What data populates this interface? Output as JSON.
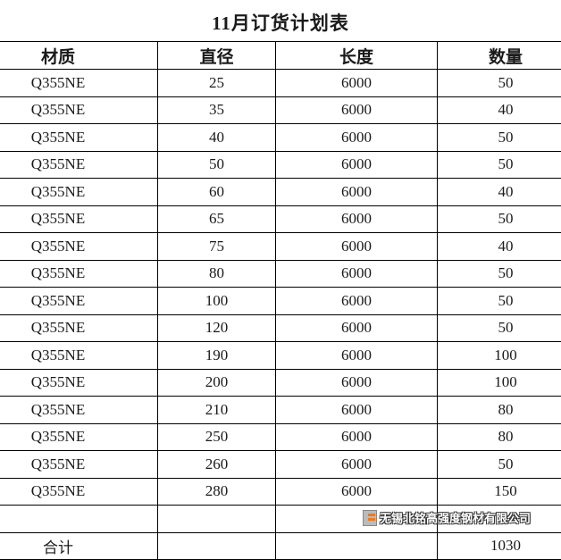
{
  "title": "11月订货计划表",
  "headers": [
    "材质",
    "直径",
    "长度",
    "数量"
  ],
  "rows": [
    [
      "Q355NE",
      "25",
      "6000",
      "50"
    ],
    [
      "Q355NE",
      "35",
      "6000",
      "40"
    ],
    [
      "Q355NE",
      "40",
      "6000",
      "50"
    ],
    [
      "Q355NE",
      "50",
      "6000",
      "50"
    ],
    [
      "Q355NE",
      "60",
      "6000",
      "40"
    ],
    [
      "Q355NE",
      "65",
      "6000",
      "50"
    ],
    [
      "Q355NE",
      "75",
      "6000",
      "40"
    ],
    [
      "Q355NE",
      "80",
      "6000",
      "50"
    ],
    [
      "Q355NE",
      "100",
      "6000",
      "50"
    ],
    [
      "Q355NE",
      "120",
      "6000",
      "50"
    ],
    [
      "Q355NE",
      "190",
      "6000",
      "100"
    ],
    [
      "Q355NE",
      "200",
      "6000",
      "100"
    ],
    [
      "Q355NE",
      "210",
      "6000",
      "80"
    ],
    [
      "Q355NE",
      "250",
      "6000",
      "80"
    ],
    [
      "Q355NE",
      "260",
      "6000",
      "50"
    ],
    [
      "Q355NE",
      "280",
      "6000",
      "150"
    ]
  ],
  "total": {
    "label": "合计",
    "value": "1030"
  },
  "watermark": "无锡北铭高强度钢材有限公司"
}
